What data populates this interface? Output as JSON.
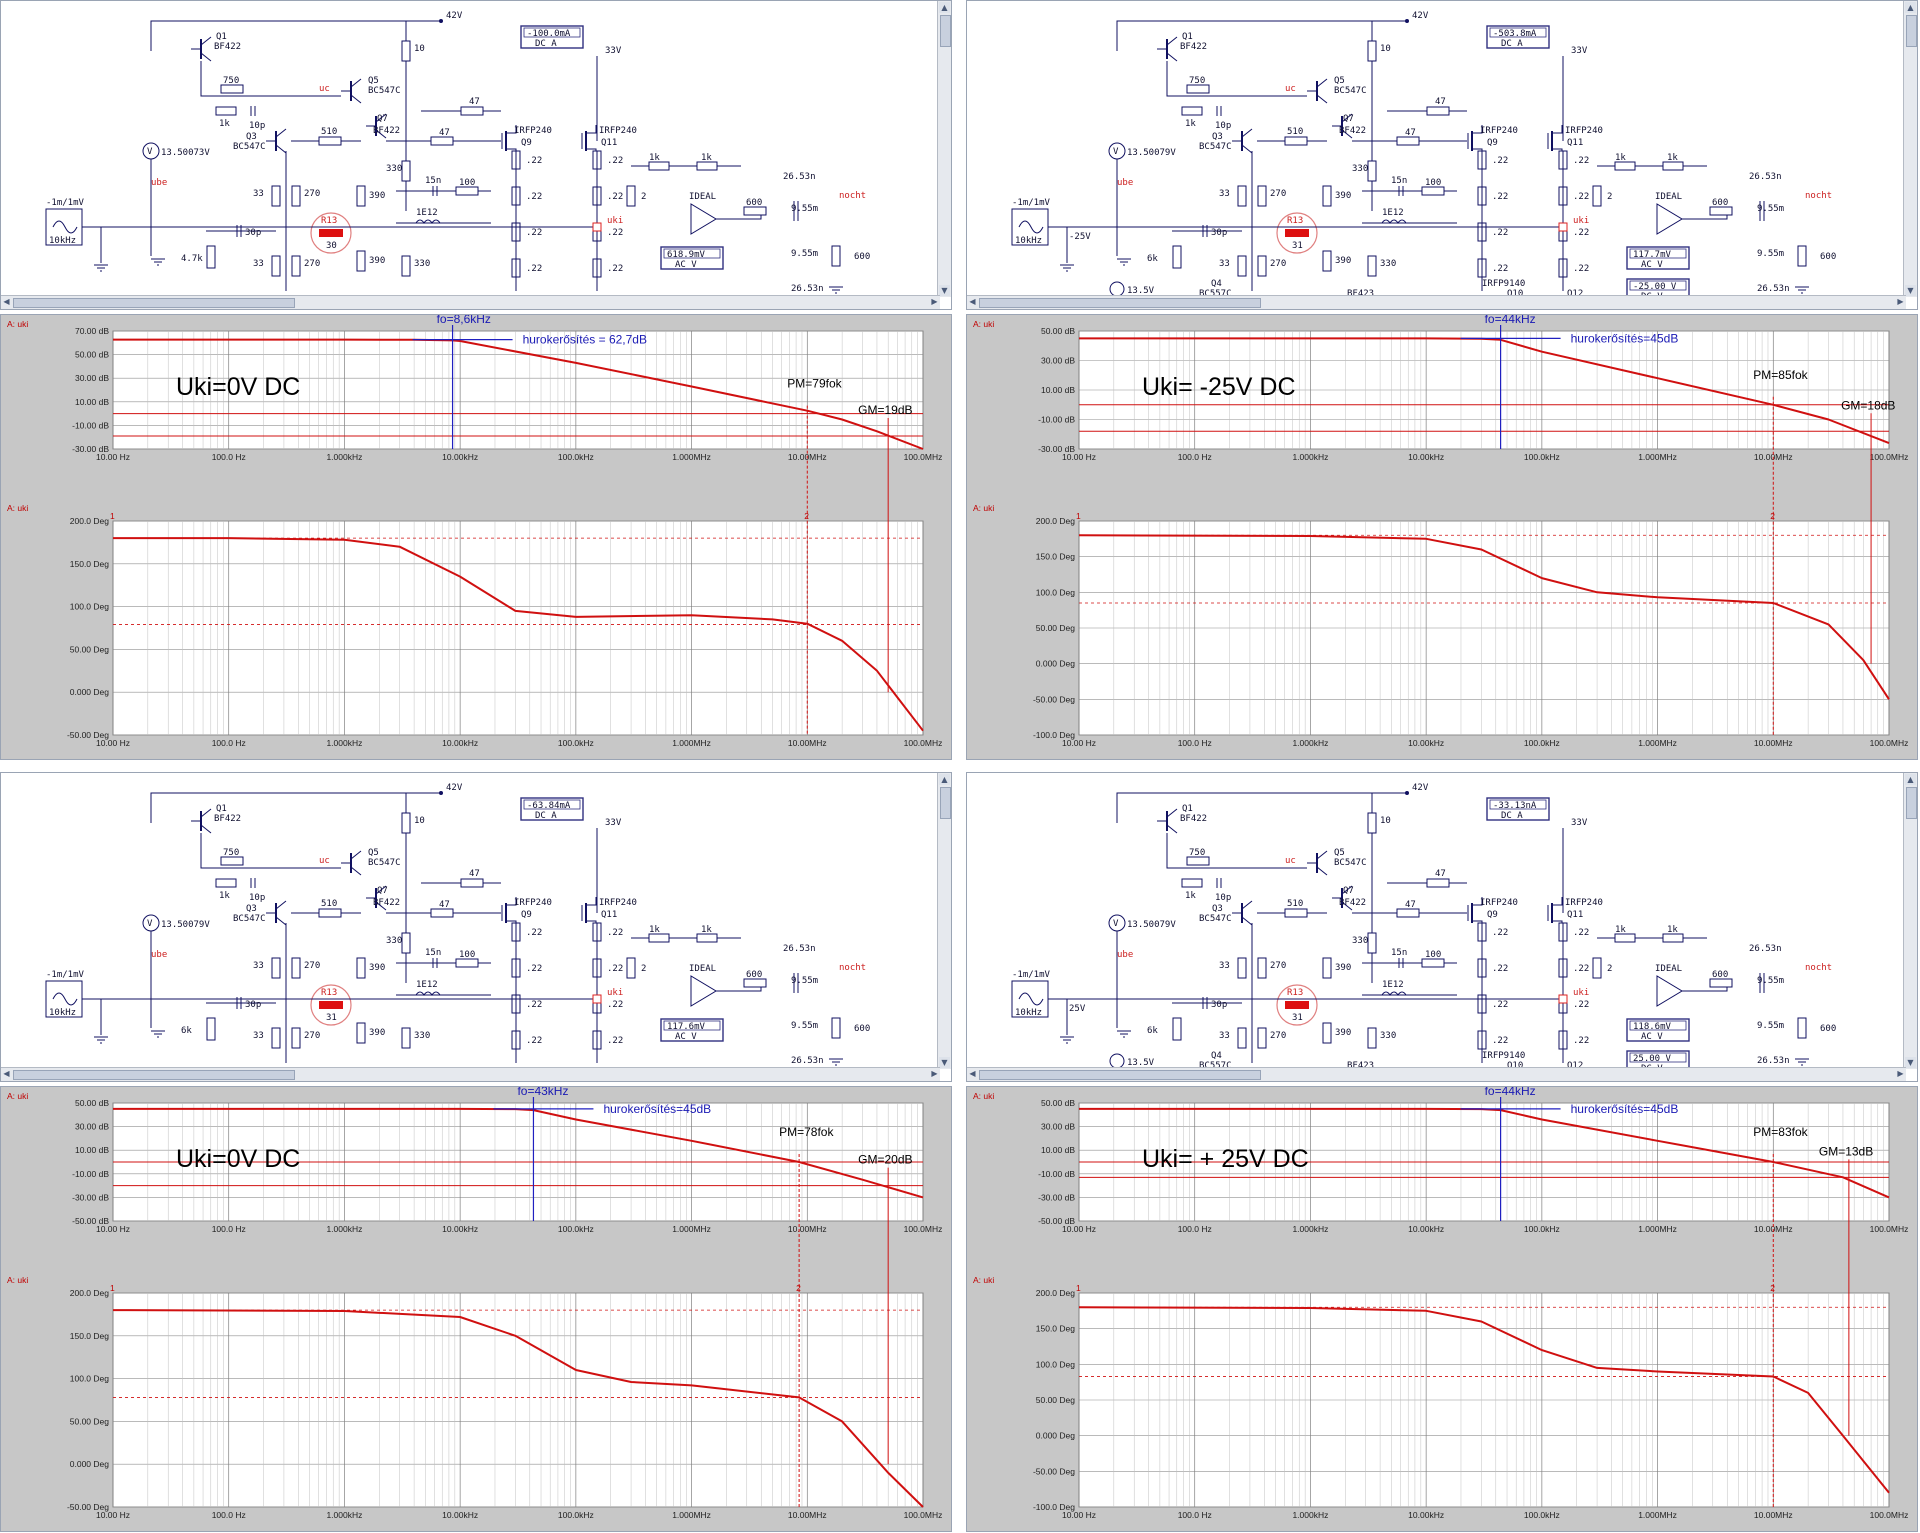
{
  "panels": [
    {
      "caption": "Uki=0V DC",
      "fo_label": "fo=8,6kHz",
      "gain_label": "hurokerősítés = 62,7dB",
      "pm_label": "PM=79fok",
      "gm_label": "GM=19dB",
      "plot_label_top": "A: uki",
      "plot_label_bottom": "A: uki",
      "gain_axis_ticks": [
        "70.00 dB",
        "50.00 dB",
        "30.00 dB",
        "10.00 dB",
        "-10.00 dB",
        "-30.00 dB"
      ],
      "phase_axis_ticks": [
        "200.0 Deg",
        "150.0 Deg",
        "100.0 Deg",
        "50.00 Deg",
        "0.000 Deg",
        "-50.00 Deg"
      ],
      "schematic": {
        "meter_dc_value": "-100.0mA",
        "meter_dc_mode": "DC A",
        "meter_ac_value": "618.9mV",
        "meter_ac_mode": "AC V",
        "source_voltage": "13.50073V",
        "r13_value": "30",
        "bias_resistor": "4.7k",
        "has_lower_stage": false,
        "lower_meter_value": "",
        "lower_meter_mode": "",
        "lower_source": "",
        "dc_source": ""
      }
    },
    {
      "caption": "Uki= -25V DC",
      "fo_label": "fo=44kHz",
      "gain_label": "hurokerősítés=45dB",
      "pm_label": "PM=85fok",
      "gm_label": "GM=18dB",
      "plot_label_top": "A: uki",
      "plot_label_bottom": "A: uki",
      "gain_axis_ticks": [
        "50.00 dB",
        "30.00 dB",
        "10.00 dB",
        "-10.00 dB",
        "-30.00 dB"
      ],
      "phase_axis_ticks": [
        "200.0 Deg",
        "150.0 Deg",
        "100.0 Deg",
        "50.00 Deg",
        "0.000 Deg",
        "-50.00 Deg",
        "-100.0 Deg"
      ],
      "schematic": {
        "meter_dc_value": "-503.8mA",
        "meter_dc_mode": "DC A",
        "meter_ac_value": "117.7mV",
        "meter_ac_mode": "AC V",
        "source_voltage": "13.50079V",
        "r13_value": "31",
        "bias_resistor": "6k",
        "has_lower_stage": true,
        "lower_meter_value": "-25.00 V",
        "lower_meter_mode": "DC V",
        "lower_source": "13.5V",
        "dc_source": "-25V"
      }
    },
    {
      "caption": "Uki=0V DC",
      "fo_label": "fo=43kHz",
      "gain_label": "hurokerősítés=45dB",
      "pm_label": "PM=78fok",
      "gm_label": "GM=20dB",
      "plot_label_top": "A: uki",
      "plot_label_bottom": "A: uki",
      "gain_axis_ticks": [
        "50.00 dB",
        "30.00 dB",
        "10.00 dB",
        "-10.00 dB",
        "-30.00 dB",
        "-50.00 dB"
      ],
      "phase_axis_ticks": [
        "200.0 Deg",
        "150.0 Deg",
        "100.0 Deg",
        "50.00 Deg",
        "0.000 Deg",
        "-50.00 Deg"
      ],
      "schematic": {
        "meter_dc_value": "-63.84mA",
        "meter_dc_mode": "DC A",
        "meter_ac_value": "117.6mV",
        "meter_ac_mode": "AC V",
        "source_voltage": "13.50079V",
        "r13_value": "31",
        "bias_resistor": "6k",
        "has_lower_stage": false,
        "lower_meter_value": "",
        "lower_meter_mode": "",
        "lower_source": "",
        "dc_source": ""
      }
    },
    {
      "caption": "Uki= + 25V DC",
      "fo_label": "fo=44kHz",
      "gain_label": "hurokerősítés=45dB",
      "pm_label": "PM=83fok",
      "gm_label": "GM=13dB",
      "plot_label_top": "A: uki",
      "plot_label_bottom": "A: uki",
      "gain_axis_ticks": [
        "50.00 dB",
        "30.00 dB",
        "10.00 dB",
        "-10.00 dB",
        "-30.00 dB",
        "-50.00 dB"
      ],
      "phase_axis_ticks": [
        "200.0 Deg",
        "150.0 Deg",
        "100.0 Deg",
        "50.00 Deg",
        "0.000 Deg",
        "-50.00 Deg",
        "-100.0 Deg"
      ],
      "schematic": {
        "meter_dc_value": "-33.13nA",
        "meter_dc_mode": "DC A",
        "meter_ac_value": "118.6mV",
        "meter_ac_mode": "AC V",
        "source_voltage": "13.50079V",
        "r13_value": "31",
        "bias_resistor": "6k",
        "has_lower_stage": true,
        "lower_meter_value": "25.00 V",
        "lower_meter_mode": "DC V",
        "lower_source": "13.5V",
        "dc_source": "25V"
      }
    }
  ],
  "freq_axis_ticks": [
    "10.00 Hz",
    "100.0 Hz",
    "1.000kHz",
    "10.00kHz",
    "100.0kHz",
    "1.000MHz",
    "10.00MHz",
    "100.0MHz"
  ],
  "schematic_common": {
    "q1": "Q1",
    "q1_type": "BF422",
    "q5": "Q5",
    "q5_type": "BC547C",
    "q3": "Q3",
    "q3_type": "BC547C",
    "q7": "Q7",
    "q7_type": "BF422",
    "q9": "Q9",
    "q9_type": "IRFP240",
    "q11": "Q11",
    "q11_type": "IRFP240",
    "q4": "Q4",
    "q4_type": "BC557C",
    "q10": "Q10",
    "q10_type": "IRFP9140",
    "q12": "Q12",
    "q8_type": "BF423",
    "rail_pos": "42V",
    "rail_out": "33V",
    "r750": "750",
    "r1k": "1k",
    "c10p": "10p",
    "c30p": "30p",
    "r510": "510",
    "r47": "47",
    "r10": "10",
    "r330": "330",
    "r390": "390",
    "r33": "33",
    "r270": "270",
    "r100": "100",
    "c15n": "15n",
    "l1e12": "1E12",
    "r022": ".22",
    "r2": "2",
    "r600": "600",
    "l955": "9.55m",
    "c2653": "26.53n",
    "ideal": "IDEAL",
    "src_amp": "-1m/1mV",
    "src_freq": "10kHz",
    "node_uc": "uc",
    "node_ube": "ube",
    "node_uki": "uki",
    "node_nocht": "nocht",
    "r13_name": "R13"
  },
  "chart_data": [
    {
      "type": "line",
      "title": "Uki=0V DC",
      "xscale": "log",
      "xlim": [
        10,
        100000000
      ],
      "gain": {
        "ylabel": "A: uki",
        "ylim": [
          -30,
          70
        ],
        "x": [
          10,
          100,
          1000,
          4000,
          8600,
          10000,
          100000,
          1000000,
          10000000,
          20000000,
          40000000,
          100000000
        ],
        "values": [
          62.7,
          62.7,
          62.7,
          62.5,
          62.0,
          61.5,
          43,
          23,
          2.5,
          -5,
          -15,
          -30
        ]
      },
      "phase": {
        "ylabel": "A: uki",
        "ylim": [
          -50,
          200
        ],
        "x": [
          10,
          100,
          1000,
          3000,
          10000,
          30000,
          100000,
          1000000,
          5000000,
          10000000,
          20000000,
          40000000,
          100000000
        ],
        "values": [
          180,
          180,
          178,
          170,
          135,
          95,
          88,
          90,
          85,
          80,
          60,
          25,
          -45
        ]
      },
      "markers": {
        "fo_hz": 8600,
        "pm_hz": 10000000,
        "gm_hz": 50000000,
        "pm_level": 79,
        "gain_level": 62.7,
        "gm_level": -19
      }
    },
    {
      "type": "line",
      "title": "Uki= -25V DC",
      "xscale": "log",
      "xlim": [
        10,
        100000000
      ],
      "gain": {
        "ylabel": "A: uki",
        "ylim": [
          -30,
          50
        ],
        "x": [
          10,
          1000,
          10000,
          30000,
          44000,
          100000,
          1000000,
          10000000,
          30000000,
          100000000
        ],
        "values": [
          45,
          45,
          45,
          44.8,
          44,
          36,
          18,
          0,
          -10,
          -26
        ]
      },
      "phase": {
        "ylabel": "A: uki",
        "ylim": [
          -100,
          200
        ],
        "x": [
          10,
          1000,
          10000,
          30000,
          100000,
          300000,
          1000000,
          10000000,
          30000000,
          60000000,
          100000000
        ],
        "values": [
          180,
          179,
          175,
          160,
          120,
          100,
          93,
          85,
          55,
          5,
          -50
        ]
      },
      "markers": {
        "fo_hz": 44000,
        "pm_hz": 10000000,
        "gm_hz": 70000000,
        "pm_level": 85,
        "gain_level": 45,
        "gm_level": -18
      }
    },
    {
      "type": "line",
      "title": "Uki=0V DC",
      "xscale": "log",
      "xlim": [
        10,
        100000000
      ],
      "gain": {
        "ylabel": "A: uki",
        "ylim": [
          -50,
          50
        ],
        "x": [
          10,
          1000,
          10000,
          30000,
          43000,
          100000,
          1000000,
          8500000,
          30000000,
          100000000
        ],
        "values": [
          45,
          45,
          45,
          44.8,
          44,
          36,
          18,
          0,
          -15,
          -30
        ]
      },
      "phase": {
        "ylabel": "A: uki",
        "ylim": [
          -50,
          200
        ],
        "x": [
          10,
          1000,
          10000,
          30000,
          100000,
          300000,
          1000000,
          8500000,
          20000000,
          50000000,
          100000000
        ],
        "values": [
          180,
          179,
          172,
          150,
          110,
          96,
          92,
          78,
          50,
          -10,
          -50
        ]
      },
      "markers": {
        "fo_hz": 43000,
        "pm_hz": 8500000,
        "gm_hz": 50000000,
        "pm_level": 78,
        "gain_level": 45,
        "gm_level": -20
      }
    },
    {
      "type": "line",
      "title": "Uki= + 25V DC",
      "xscale": "log",
      "xlim": [
        10,
        100000000
      ],
      "gain": {
        "ylabel": "A: uki",
        "ylim": [
          -50,
          50
        ],
        "x": [
          10,
          1000,
          10000,
          30000,
          44000,
          100000,
          1000000,
          10000000,
          40000000,
          100000000
        ],
        "values": [
          45,
          45,
          45,
          44.8,
          44,
          36,
          18,
          0,
          -13,
          -30
        ]
      },
      "phase": {
        "ylabel": "A: uki",
        "ylim": [
          -100,
          200
        ],
        "x": [
          10,
          1000,
          10000,
          30000,
          100000,
          300000,
          1000000,
          10000000,
          20000000,
          40000000,
          100000000
        ],
        "values": [
          180,
          179,
          175,
          160,
          120,
          95,
          90,
          83,
          60,
          0,
          -80
        ]
      },
      "markers": {
        "fo_hz": 44000,
        "pm_hz": 10000000,
        "gm_hz": 45000000,
        "pm_level": 83,
        "gain_level": 45,
        "gm_level": -13
      }
    }
  ]
}
